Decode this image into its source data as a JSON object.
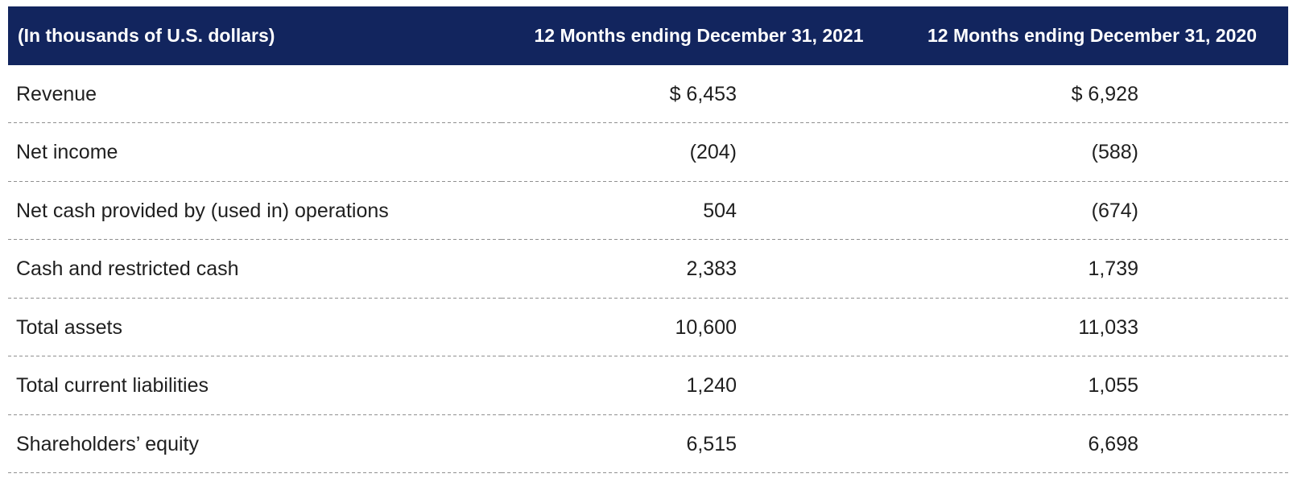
{
  "table": {
    "unit_note": "(In thousands of U.S. dollars)",
    "columns": [
      "12 Months ending December 31, 2021",
      "12 Months ending December 31, 2020"
    ],
    "rows": [
      {
        "label": "Revenue",
        "y2021": "$ 6,453",
        "y2020": "$ 6,928"
      },
      {
        "label": "Net income",
        "y2021": "(204)",
        "y2020": "(588)"
      },
      {
        "label": "Net cash provided by (used in) operations",
        "y2021": "504",
        "y2020": "(674)"
      },
      {
        "label": "Cash and restricted cash",
        "y2021": "2,383",
        "y2020": "1,739"
      },
      {
        "label": "Total assets",
        "y2021": "10,600",
        "y2020": "11,033"
      },
      {
        "label": "Total current liabilities",
        "y2021": "1,240",
        "y2020": "1,055"
      },
      {
        "label": "Shareholders’ equity",
        "y2021": "6,515",
        "y2020": "6,698"
      }
    ],
    "colors": {
      "header_bg": "#12255e",
      "header_text": "#ffffff",
      "body_text": "#1f1f1f",
      "divider": "#8f8f8f"
    }
  },
  "chart_data": {
    "type": "table",
    "title": "",
    "unit_note": "(In thousands of U.S. dollars)",
    "categories": [
      "Revenue",
      "Net income",
      "Net cash provided by (used in) operations",
      "Cash and restricted cash",
      "Total assets",
      "Total current liabilities",
      "Shareholders’ equity"
    ],
    "series": [
      {
        "name": "12 Months ending December 31, 2021",
        "values": [
          6453,
          -204,
          504,
          2383,
          10600,
          1240,
          6515
        ]
      },
      {
        "name": "12 Months ending December 31, 2020",
        "values": [
          6928,
          -588,
          -674,
          1739,
          11033,
          1055,
          6698
        ]
      }
    ],
    "notes": "Negative values shown in parentheses; dollar sign shown on first row only"
  }
}
